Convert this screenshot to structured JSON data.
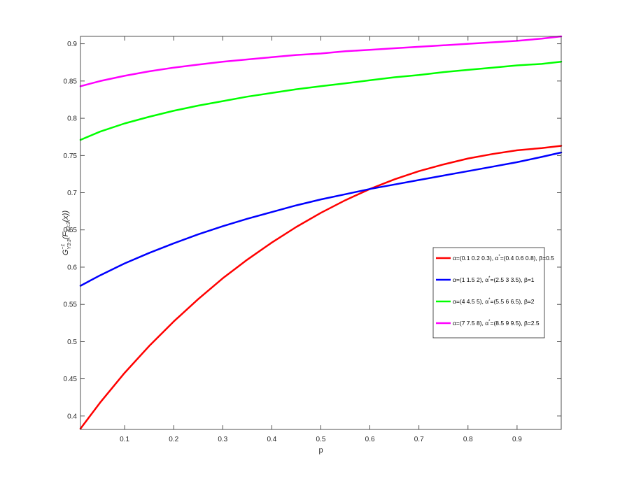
{
  "chart_data": {
    "type": "line",
    "xlabel": "p",
    "ylabel": "G_{Y_{3:3}}^{-1}(F_{X_{3:3}}(x))",
    "ylabel_parts": {
      "base": "G",
      "sup": "−1",
      "sub": "Y3:3",
      "arg_open": "(F",
      "arg_sub": "X3:3",
      "arg_close": "(x))"
    },
    "xlim": [
      0.01,
      0.99
    ],
    "ylim": [
      0.382,
      0.91
    ],
    "x_ticks": [
      0.1,
      0.2,
      0.3,
      0.4,
      0.5,
      0.6,
      0.7,
      0.8,
      0.9
    ],
    "x_tick_labels": [
      "0.1",
      "0.2",
      "0.3",
      "0.4",
      "0.5",
      "0.6",
      "0.7",
      "0.8",
      "0.9"
    ],
    "y_ticks": [
      0.4,
      0.45,
      0.5,
      0.55,
      0.6,
      0.65,
      0.7,
      0.75,
      0.8,
      0.85,
      0.9
    ],
    "y_tick_labels": [
      "0.4",
      "0.45",
      "0.5",
      "0.55",
      "0.6",
      "0.65",
      "0.7",
      "0.75",
      "0.8",
      "0.85",
      "0.9"
    ],
    "grid": false,
    "legend_position": "right",
    "x": [
      0.01,
      0.05,
      0.1,
      0.15,
      0.2,
      0.25,
      0.3,
      0.35,
      0.4,
      0.45,
      0.5,
      0.55,
      0.6,
      0.65,
      0.7,
      0.75,
      0.8,
      0.85,
      0.9,
      0.95,
      0.99
    ],
    "series": [
      {
        "legend_parts": [
          "α=(0.1 0.2 0.3), α",
          "*",
          "=(0.4 0.6 0.8), β=0.5"
        ],
        "color": "#ff0000",
        "values": [
          0.383,
          0.418,
          0.458,
          0.494,
          0.527,
          0.557,
          0.585,
          0.61,
          0.633,
          0.654,
          0.673,
          0.69,
          0.705,
          0.718,
          0.729,
          0.738,
          0.746,
          0.752,
          0.757,
          0.76,
          0.763
        ]
      },
      {
        "legend_parts": [
          "α=(1 1.5 2), α",
          "*",
          "=(2.5 3 3.5), β=1"
        ],
        "color": "#0000ff",
        "values": [
          0.575,
          0.589,
          0.605,
          0.619,
          0.632,
          0.644,
          0.655,
          0.665,
          0.674,
          0.683,
          0.691,
          0.698,
          0.705,
          0.711,
          0.717,
          0.723,
          0.729,
          0.735,
          0.741,
          0.748,
          0.754
        ]
      },
      {
        "legend_parts": [
          "α=(4 4.5 5), α",
          "*",
          "=(5.5 6 6.5), β=2"
        ],
        "color": "#00ff00",
        "values": [
          0.771,
          0.782,
          0.793,
          0.802,
          0.81,
          0.817,
          0.823,
          0.829,
          0.834,
          0.839,
          0.843,
          0.847,
          0.851,
          0.855,
          0.858,
          0.862,
          0.865,
          0.868,
          0.871,
          0.873,
          0.876
        ]
      },
      {
        "legend_parts": [
          "α=(7 7.5 8), α",
          "*",
          "=(8.5 9 9.5), β=2.5"
        ],
        "color": "#ff00ff",
        "values": [
          0.843,
          0.85,
          0.857,
          0.863,
          0.868,
          0.872,
          0.876,
          0.879,
          0.882,
          0.885,
          0.887,
          0.89,
          0.892,
          0.894,
          0.896,
          0.898,
          0.9,
          0.902,
          0.904,
          0.907,
          0.91
        ]
      }
    ]
  }
}
